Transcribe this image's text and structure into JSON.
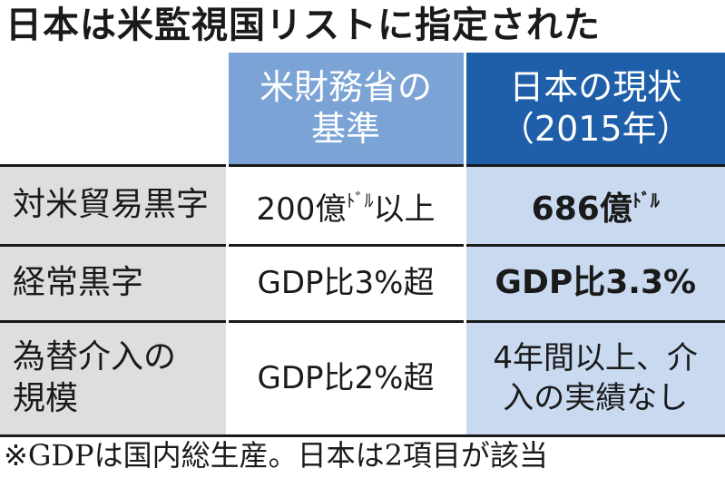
{
  "title": "日本は米監視国リストに指定された",
  "header": {
    "col_standard": [
      "米財務省の",
      "基準"
    ],
    "col_current": [
      "日本の現状",
      "（2015年）"
    ]
  },
  "rows": [
    {
      "label": [
        "対米貿易黒字"
      ],
      "standard": {
        "text": "200億",
        "sup": "ﾄﾞﾙ",
        "suffix": "以上"
      },
      "current": {
        "text": "686億",
        "sup": "ﾄﾞﾙ",
        "suffix": ""
      }
    },
    {
      "label": [
        "経常黒字"
      ],
      "standard": {
        "text": "GDP比3%超",
        "sup": "",
        "suffix": ""
      },
      "current": {
        "text": "GDP比3.3%",
        "sup": "",
        "suffix": ""
      }
    },
    {
      "label": [
        "為替介入の",
        "規模"
      ],
      "standard": {
        "text": "GDP比2%超",
        "sup": "",
        "suffix": ""
      },
      "current_lines": [
        "4年間以上、介",
        "入の実績なし"
      ]
    }
  ],
  "note": "※GDPは国内総生産。日本は2項目が該当",
  "colors": {
    "header_standard": "#7ba3d6",
    "header_current": "#1f5ea9",
    "label_bg": "#dedede",
    "current_bg": "#c9d9f0",
    "rule": "#1a1a1a"
  }
}
